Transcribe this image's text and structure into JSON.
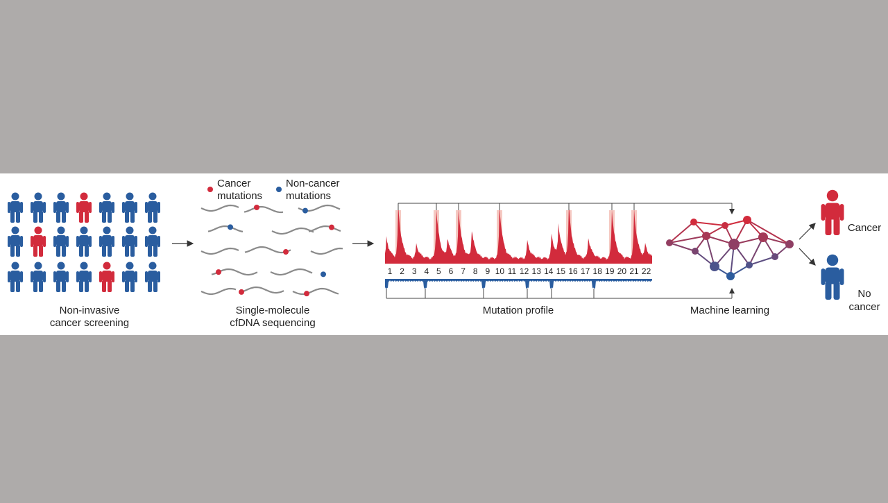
{
  "legend": {
    "cancer": [
      "Cancer",
      "mutations"
    ],
    "non_cancer": [
      "Non-cancer",
      "mutations"
    ]
  },
  "steps": [
    {
      "label": [
        "Non-invasive",
        "cancer screening"
      ]
    },
    {
      "label": [
        "Single-molecule",
        "cfDNA sequencing"
      ]
    },
    {
      "label": [
        "Mutation profile"
      ]
    },
    {
      "label": [
        "Machine learning"
      ]
    }
  ],
  "chromosomes": [
    "1",
    "2",
    "3",
    "4",
    "5",
    "6",
    "7",
    "8",
    "9",
    "10",
    "11",
    "12",
    "13",
    "14",
    "15",
    "16",
    "17",
    "18",
    "19",
    "20",
    "21",
    "22"
  ],
  "outcomes": {
    "cancer": [
      "Cancer"
    ],
    "no_cancer": [
      "No",
      "cancer"
    ]
  }
}
